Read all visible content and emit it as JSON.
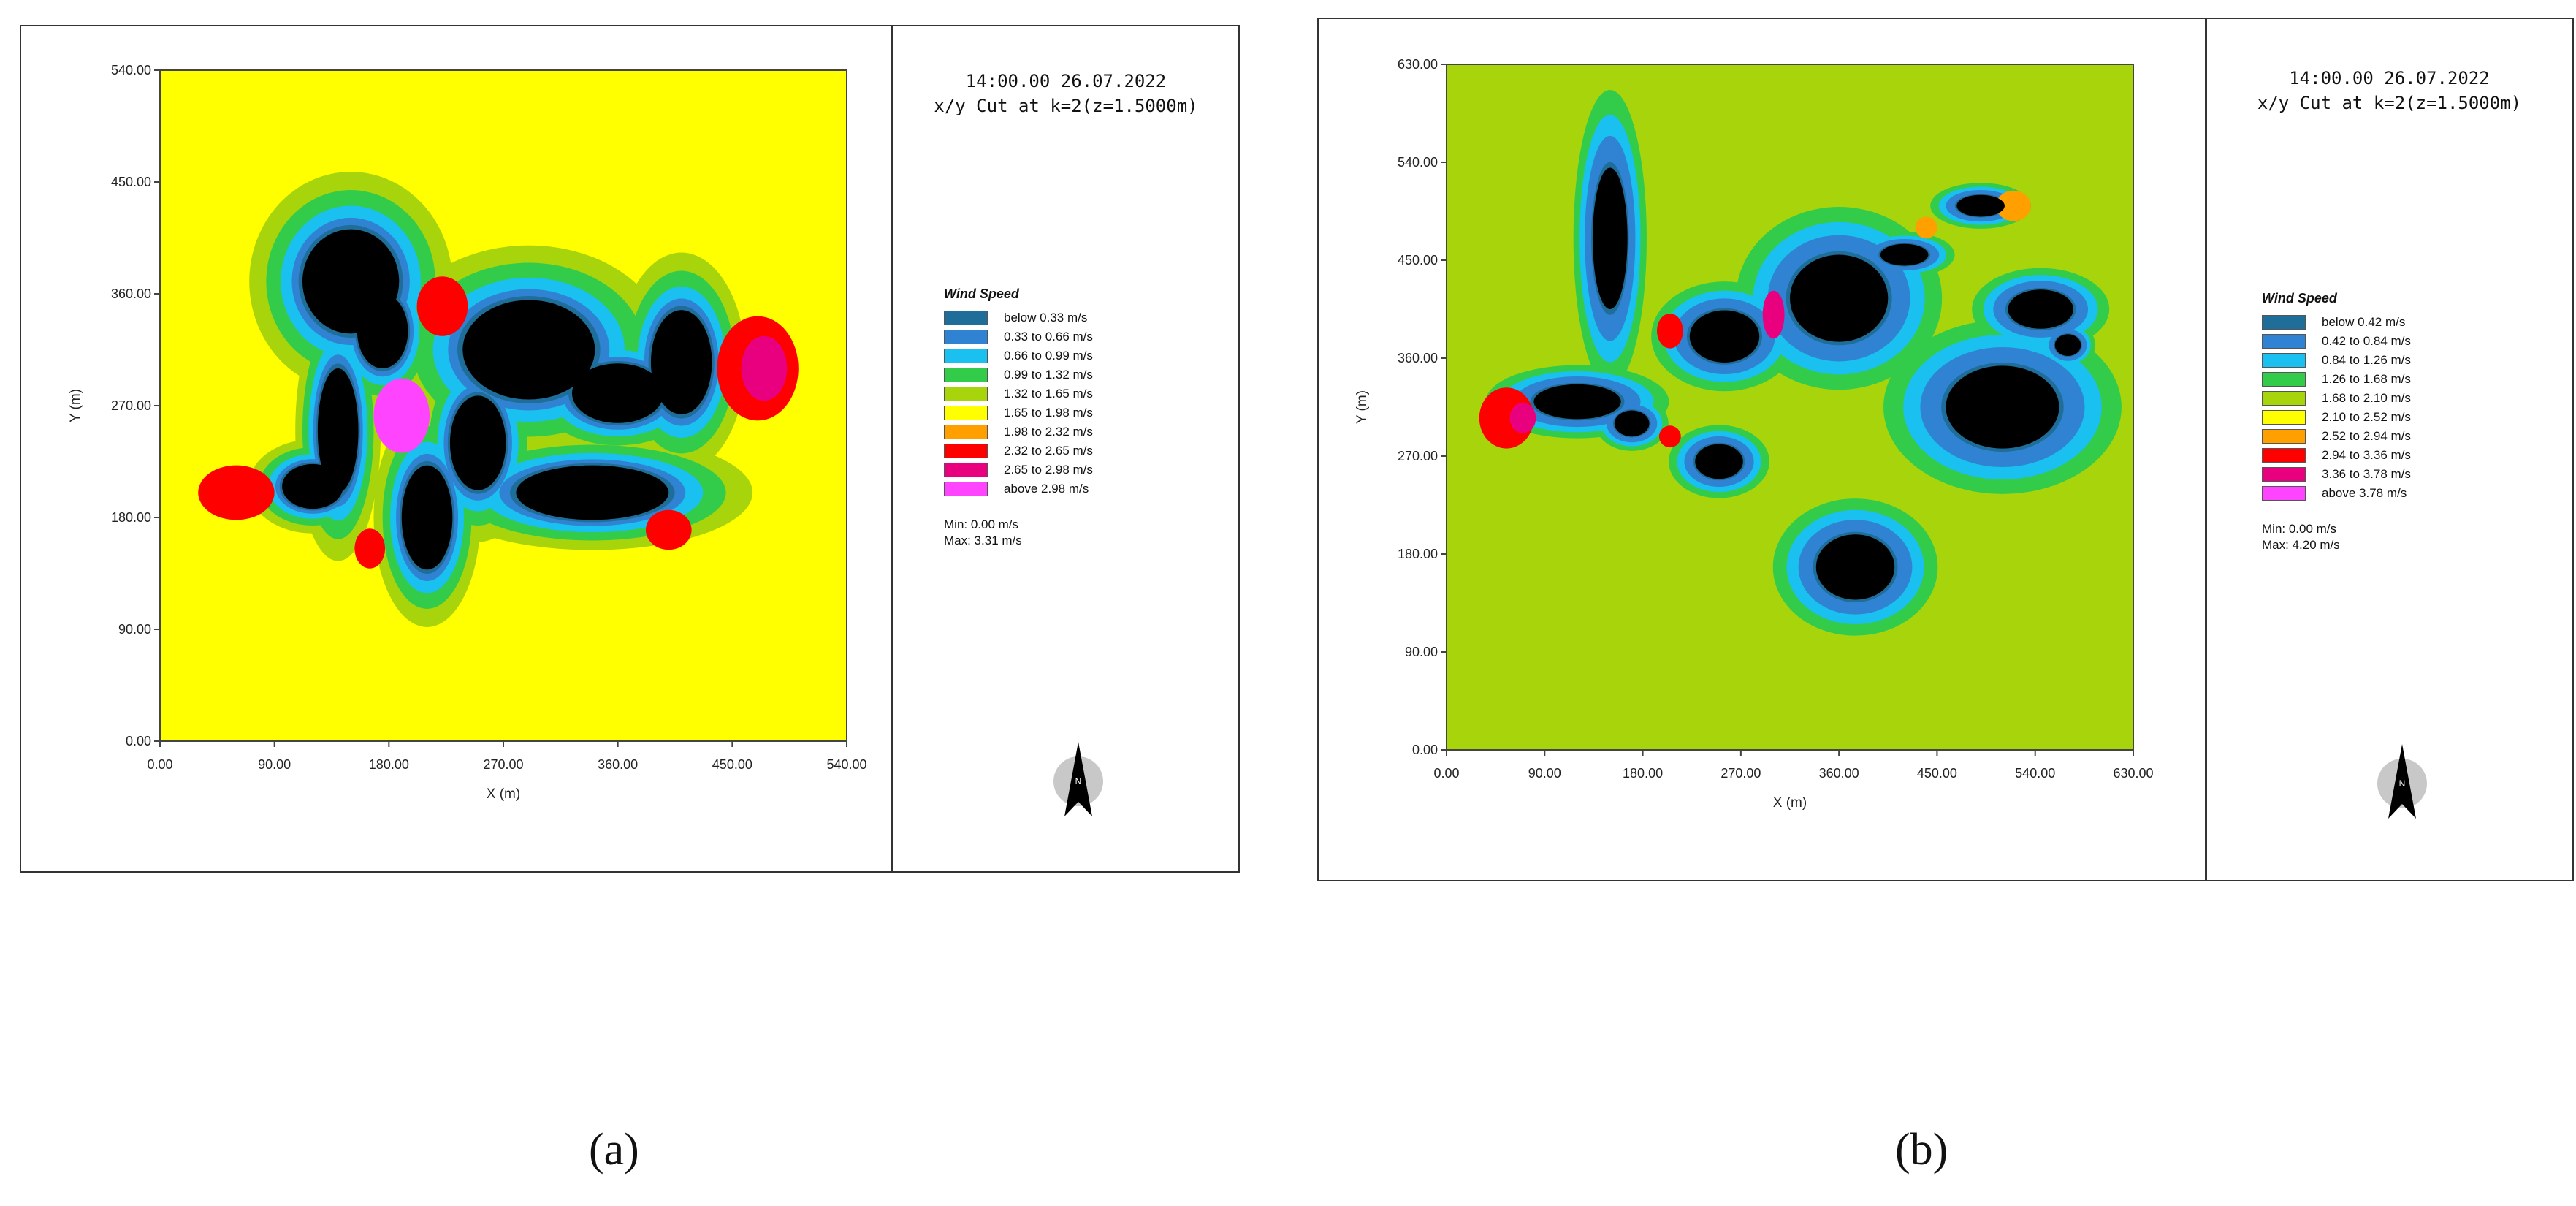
{
  "figure": {
    "caption_a": "(a)",
    "caption_b": "(b)"
  },
  "chart_data": [
    {
      "type": "heatmap",
      "title": "Wind Speed",
      "timestamp": "14:00.00 26.07.2022",
      "cut": "x/y Cut at k=2(z=1.5000m)",
      "xlabel": "X (m)",
      "ylabel": "Y (m)",
      "xlim": [
        0,
        540
      ],
      "ylim": [
        0,
        540
      ],
      "x_ticks": [
        "0.00",
        "90.00",
        "180.00",
        "270.00",
        "360.00",
        "450.00",
        "540.00"
      ],
      "y_ticks": [
        "0.00",
        "90.00",
        "180.00",
        "270.00",
        "360.00",
        "450.00",
        "540.00"
      ],
      "legend": [
        {
          "label": "below 0.33 m/s",
          "color": "#1f6e99"
        },
        {
          "label": "0.33 to 0.66 m/s",
          "color": "#2f83d2"
        },
        {
          "label": "0.66 to 0.99 m/s",
          "color": "#19c0f0"
        },
        {
          "label": "0.99 to 1.32 m/s",
          "color": "#33cc4a"
        },
        {
          "label": "1.32 to 1.65 m/s",
          "color": "#a8d40c"
        },
        {
          "label": "1.65 to 1.98 m/s",
          "color": "#ffff00"
        },
        {
          "label": "1.98 to 2.32 m/s",
          "color": "#ff9f00"
        },
        {
          "label": "2.32 to 2.65 m/s",
          "color": "#ff0000"
        },
        {
          "label": "2.65 to 2.98 m/s",
          "color": "#e8007e"
        },
        {
          "label": "above 2.98 m/s",
          "color": "#ff44ff"
        }
      ],
      "min": "Min: 0.00 m/s",
      "max": "Max: 3.31 m/s",
      "background_color": "#ffff00",
      "buildings": [
        {
          "cx": 150,
          "cy": 370,
          "rx": 38,
          "ry": 42
        },
        {
          "cx": 175,
          "cy": 330,
          "rx": 20,
          "ry": 30
        },
        {
          "cx": 140,
          "cy": 250,
          "rx": 16,
          "ry": 50
        },
        {
          "cx": 120,
          "cy": 205,
          "rx": 24,
          "ry": 18
        },
        {
          "cx": 290,
          "cy": 315,
          "rx": 52,
          "ry": 40
        },
        {
          "cx": 250,
          "cy": 240,
          "rx": 22,
          "ry": 38
        },
        {
          "cx": 210,
          "cy": 180,
          "rx": 20,
          "ry": 42
        },
        {
          "cx": 360,
          "cy": 280,
          "rx": 36,
          "ry": 24
        },
        {
          "cx": 410,
          "cy": 305,
          "rx": 24,
          "ry": 42
        },
        {
          "cx": 340,
          "cy": 200,
          "rx": 60,
          "ry": 22
        }
      ],
      "hotspots": [
        {
          "cx": 470,
          "cy": 300,
          "rx": 32,
          "ry": 42,
          "color": "#ff0000"
        },
        {
          "cx": 475,
          "cy": 300,
          "rx": 18,
          "ry": 26,
          "color": "#e8007e"
        },
        {
          "cx": 60,
          "cy": 200,
          "rx": 30,
          "ry": 22,
          "color": "#ff0000"
        },
        {
          "cx": 190,
          "cy": 262,
          "rx": 22,
          "ry": 30,
          "color": "#ff44ff"
        },
        {
          "cx": 222,
          "cy": 350,
          "rx": 20,
          "ry": 24,
          "color": "#ff0000"
        },
        {
          "cx": 400,
          "cy": 170,
          "rx": 18,
          "ry": 16,
          "color": "#ff0000"
        },
        {
          "cx": 165,
          "cy": 155,
          "rx": 12,
          "ry": 16,
          "color": "#ff0000"
        }
      ]
    },
    {
      "type": "heatmap",
      "title": "Wind Speed",
      "timestamp": "14:00.00 26.07.2022",
      "cut": "x/y Cut at k=2(z=1.5000m)",
      "xlabel": "X (m)",
      "ylabel": "Y (m)",
      "xlim": [
        0,
        630
      ],
      "ylim": [
        0,
        630
      ],
      "x_ticks": [
        "0.00",
        "90.00",
        "180.00",
        "270.00",
        "360.00",
        "450.00",
        "540.00",
        "630.00"
      ],
      "y_ticks": [
        "0.00",
        "90.00",
        "180.00",
        "270.00",
        "360.00",
        "450.00",
        "540.00",
        "630.00"
      ],
      "legend": [
        {
          "label": "below 0.42 m/s",
          "color": "#1f6e99"
        },
        {
          "label": "0.42 to 0.84 m/s",
          "color": "#2f83d2"
        },
        {
          "label": "0.84 to 1.26 m/s",
          "color": "#19c0f0"
        },
        {
          "label": "1.26 to 1.68 m/s",
          "color": "#33cc4a"
        },
        {
          "label": "1.68 to 2.10 m/s",
          "color": "#a8d40c"
        },
        {
          "label": "2.10 to 2.52 m/s",
          "color": "#ffff00"
        },
        {
          "label": "2.52 to 2.94 m/s",
          "color": "#ff9f00"
        },
        {
          "label": "2.94 to 3.36 m/s",
          "color": "#ff0000"
        },
        {
          "label": "3.36 to 3.78 m/s",
          "color": "#e8007e"
        },
        {
          "label": "above 3.78 m/s",
          "color": "#ff44ff"
        }
      ],
      "min": "Min: 0.00 m/s",
      "max": "Max: 4.20 m/s",
      "background_color": "#a8d40c",
      "buildings": [
        {
          "cx": 150,
          "cy": 470,
          "rx": 16,
          "ry": 65
        },
        {
          "cx": 120,
          "cy": 320,
          "rx": 40,
          "ry": 16
        },
        {
          "cx": 170,
          "cy": 300,
          "rx": 16,
          "ry": 12
        },
        {
          "cx": 255,
          "cy": 380,
          "rx": 32,
          "ry": 24
        },
        {
          "cx": 250,
          "cy": 265,
          "rx": 22,
          "ry": 16
        },
        {
          "cx": 360,
          "cy": 415,
          "rx": 45,
          "ry": 40
        },
        {
          "cx": 420,
          "cy": 455,
          "rx": 22,
          "ry": 10
        },
        {
          "cx": 490,
          "cy": 500,
          "rx": 22,
          "ry": 10
        },
        {
          "cx": 545,
          "cy": 405,
          "rx": 30,
          "ry": 18
        },
        {
          "cx": 570,
          "cy": 372,
          "rx": 12,
          "ry": 10
        },
        {
          "cx": 510,
          "cy": 315,
          "rx": 52,
          "ry": 38
        },
        {
          "cx": 375,
          "cy": 168,
          "rx": 36,
          "ry": 30
        }
      ],
      "hotspots": [
        {
          "cx": 55,
          "cy": 305,
          "rx": 25,
          "ry": 28,
          "color": "#ff0000"
        },
        {
          "cx": 70,
          "cy": 305,
          "rx": 12,
          "ry": 14,
          "color": "#e8007e"
        },
        {
          "cx": 205,
          "cy": 385,
          "rx": 12,
          "ry": 16,
          "color": "#ff0000"
        },
        {
          "cx": 300,
          "cy": 400,
          "rx": 10,
          "ry": 22,
          "color": "#e8007e"
        },
        {
          "cx": 205,
          "cy": 288,
          "rx": 10,
          "ry": 10,
          "color": "#ff0000"
        },
        {
          "cx": 520,
          "cy": 500,
          "rx": 16,
          "ry": 14,
          "color": "#ff9f00"
        },
        {
          "cx": 440,
          "cy": 480,
          "rx": 10,
          "ry": 10,
          "color": "#ff9f00"
        }
      ]
    }
  ]
}
